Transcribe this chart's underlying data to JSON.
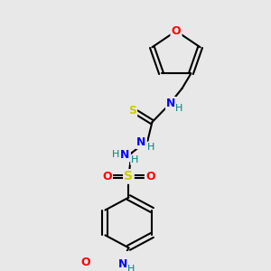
{
  "bg_color": "#e8e8e8",
  "bond_color": "#000000",
  "atom_colors": {
    "O": "#ff0000",
    "N": "#0000ff",
    "S_thio": "#cccc00",
    "S_sulfonyl": "#cccc00",
    "H": "#008080",
    "C": "#000000"
  },
  "figsize": [
    3.0,
    3.0
  ],
  "dpi": 100
}
